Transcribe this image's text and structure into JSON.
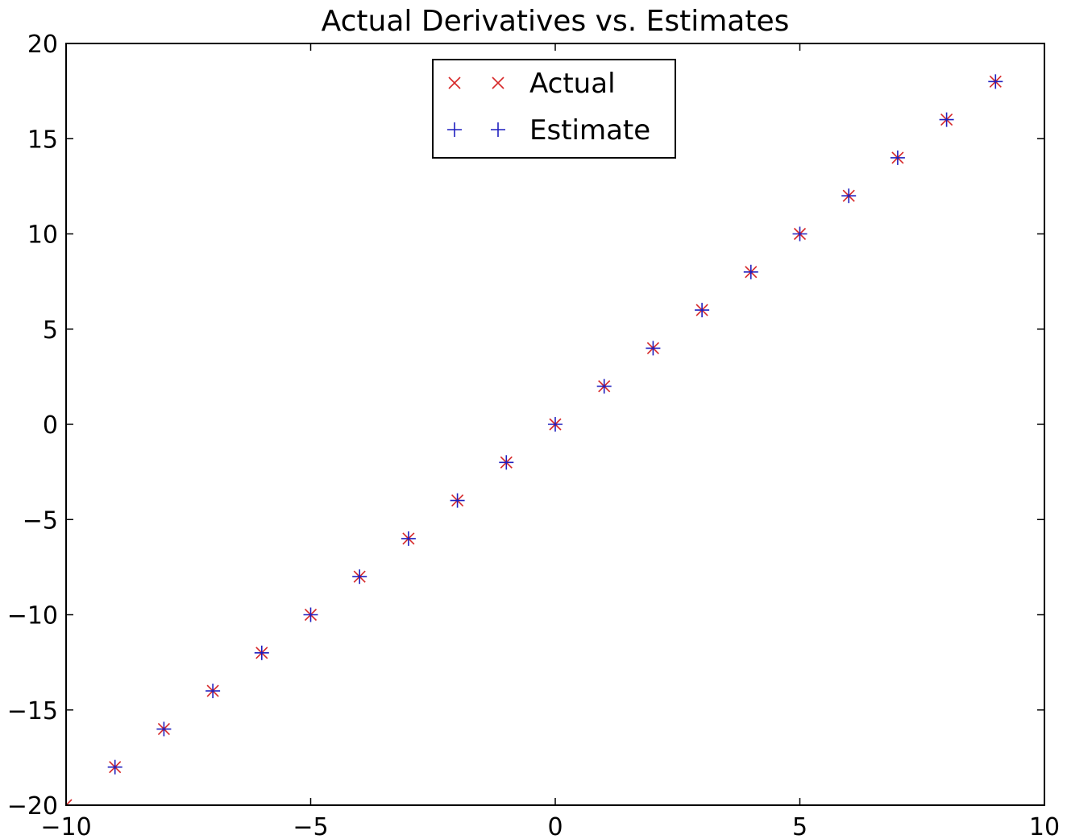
{
  "chart_data": {
    "type": "scatter",
    "title": "Actual Derivatives vs. Estimates",
    "xlabel": "",
    "ylabel": "",
    "xlim": [
      -10,
      10
    ],
    "ylim": [
      -20,
      20
    ],
    "x_ticks": [
      -10,
      -5,
      0,
      5,
      10
    ],
    "y_ticks": [
      -20,
      -15,
      -10,
      -5,
      0,
      5,
      10,
      15,
      20
    ],
    "x_tick_labels": [
      "−10",
      "−5",
      "0",
      "5",
      "10"
    ],
    "y_tick_labels": [
      "−20",
      "−15",
      "−10",
      "−5",
      "0",
      "5",
      "10",
      "15",
      "20"
    ],
    "grid": false,
    "legend_position": "upper-center",
    "series": [
      {
        "name": "Actual",
        "marker": "x",
        "color": "#d62728",
        "x": [
          -10,
          -9,
          -8,
          -7,
          -6,
          -5,
          -4,
          -3,
          -2,
          -1,
          0,
          1,
          2,
          3,
          4,
          5,
          6,
          7,
          8,
          9
        ],
        "y": [
          -20,
          -18,
          -16,
          -14,
          -12,
          -10,
          -8,
          -6,
          -4,
          -2,
          0,
          2,
          4,
          6,
          8,
          10,
          12,
          14,
          16,
          18
        ]
      },
      {
        "name": "Estimate",
        "marker": "+",
        "color": "#1f1fbf",
        "x": [
          -10,
          -9,
          -8,
          -7,
          -6,
          -5,
          -4,
          -3,
          -2,
          -1,
          0,
          1,
          2,
          3,
          4,
          5,
          6,
          7,
          8,
          9
        ],
        "y": [
          -20,
          -18,
          -16,
          -14,
          -12,
          -10,
          -8,
          -6,
          -4,
          -2,
          0,
          2,
          4,
          6,
          8,
          10,
          12,
          14,
          16,
          18
        ]
      }
    ]
  }
}
